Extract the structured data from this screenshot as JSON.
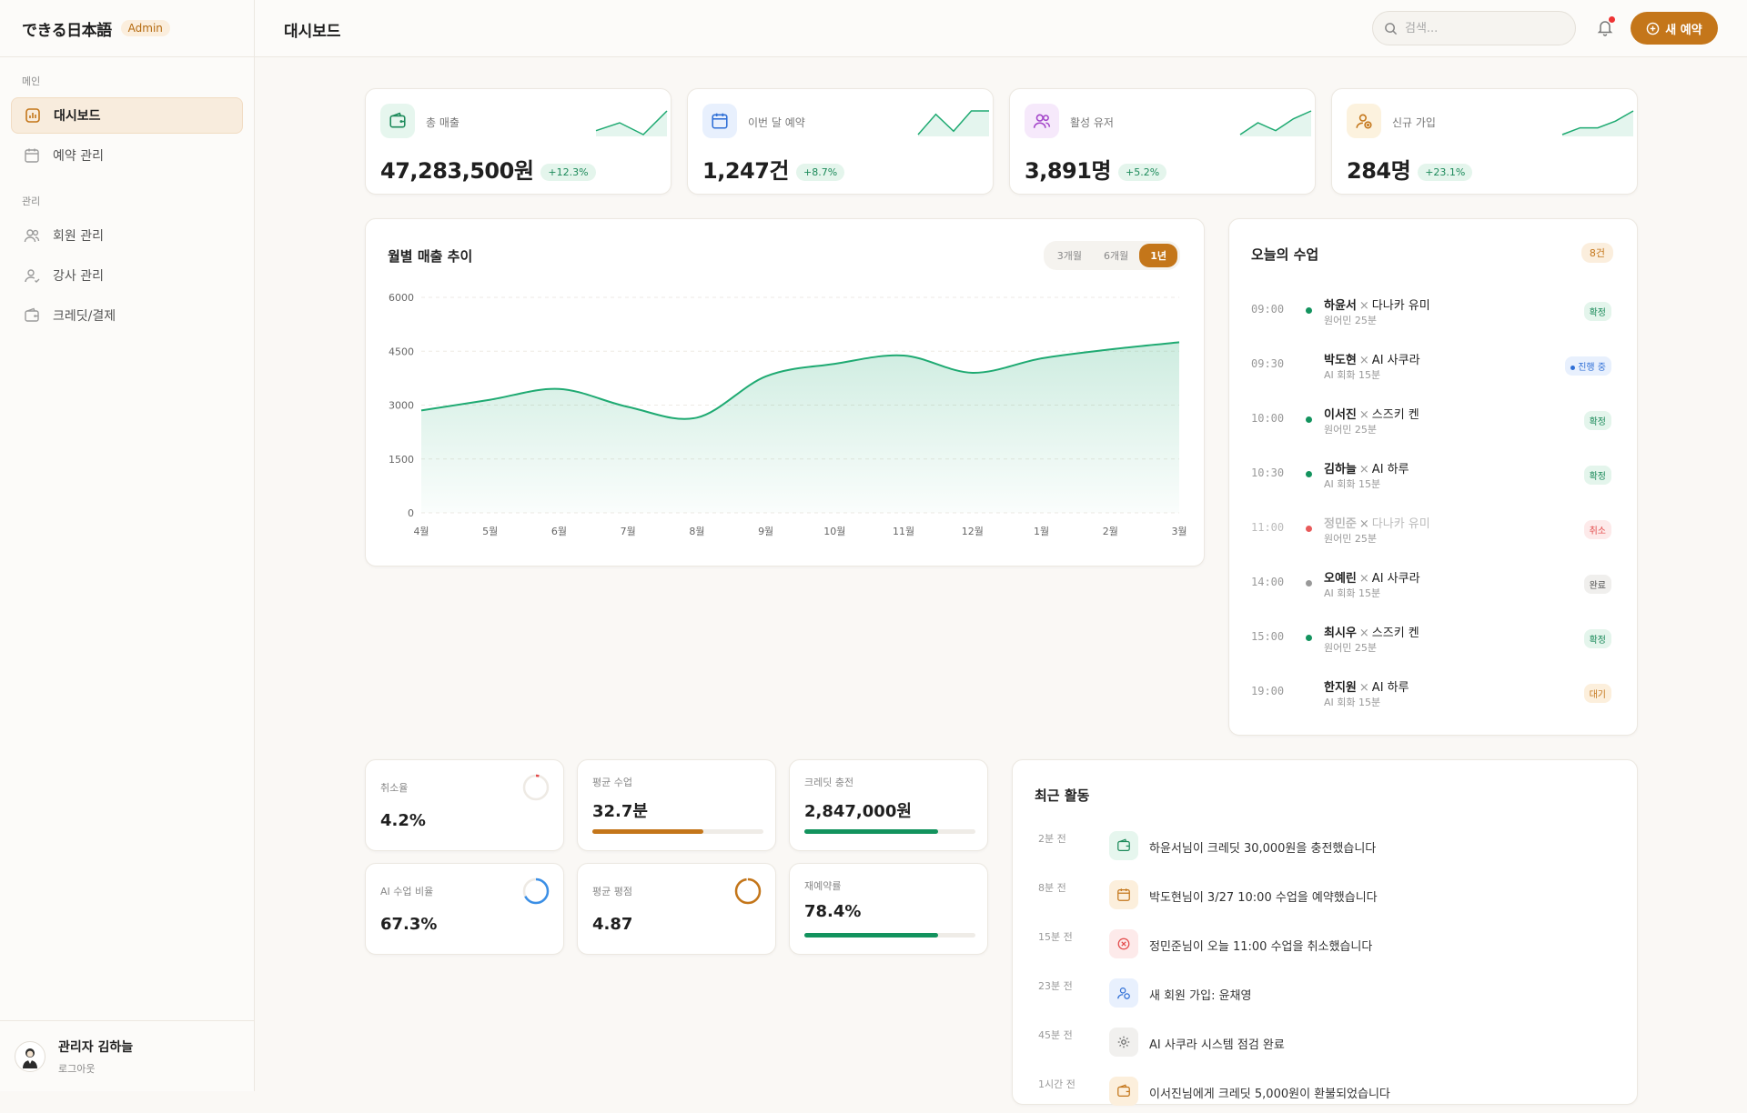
{
  "brand": {
    "name": "できる日本語",
    "badge": "Admin"
  },
  "sidebar": {
    "section_main": "메인",
    "section_manage": "관리",
    "items": [
      {
        "label": "대시보드",
        "icon": "chart-icon",
        "active": true
      },
      {
        "label": "예약 관리",
        "icon": "calendar-icon",
        "active": false
      },
      {
        "label": "회원 관리",
        "icon": "users-icon",
        "active": false
      },
      {
        "label": "강사 관리",
        "icon": "teacher-icon",
        "active": false
      },
      {
        "label": "크레딧/결제",
        "icon": "wallet-icon",
        "active": false
      }
    ],
    "admin": {
      "name": "관리자 김하늘",
      "logout": "로그아웃"
    }
  },
  "header": {
    "title": "대시보드",
    "search_placeholder": "검색...",
    "new_button": "새 예약"
  },
  "stats": [
    {
      "label": "총 매출",
      "value": "47,283,500원",
      "delta": "+12.3%",
      "icon": "wallet-icon",
      "spark": [
        3,
        5,
        2,
        8
      ],
      "color": "#1faa72"
    },
    {
      "label": "이번 달 예약",
      "value": "1,247건",
      "delta": "+8.7%",
      "icon": "calendar-icon",
      "spark": [
        1,
        7,
        2,
        8,
        8
      ],
      "color": "#1faa72"
    },
    {
      "label": "활성 유저",
      "value": "3,891명",
      "delta": "+5.2%",
      "icon": "users-icon",
      "spark": [
        2,
        5,
        3,
        6,
        8
      ],
      "color": "#1faa72"
    },
    {
      "label": "신규 가입",
      "value": "284명",
      "delta": "+23.1%",
      "icon": "user-plus-icon",
      "spark": [
        1,
        3,
        3,
        5,
        8
      ],
      "color": "#1faa72"
    }
  ],
  "revenue": {
    "title": "월별 매출 추이",
    "tabs": [
      "3개월",
      "6개월",
      "1년"
    ],
    "active_tab": "1년"
  },
  "chart_data": {
    "type": "area",
    "title": "월별 매출 추이",
    "categories": [
      "4월",
      "5월",
      "6월",
      "7월",
      "8월",
      "9월",
      "10월",
      "11월",
      "12월",
      "1월",
      "2월",
      "3월"
    ],
    "values": [
      2850,
      3150,
      3450,
      2950,
      2650,
      3800,
      4150,
      4380,
      3900,
      4300,
      4550,
      4750
    ],
    "yticks": [
      0,
      1500,
      3000,
      4500,
      6000
    ],
    "ylim": [
      0,
      6000
    ],
    "xlabel": "",
    "ylabel": "",
    "grid": true,
    "color": "#1faa72"
  },
  "today": {
    "title": "오늘의 수업",
    "count": "8건",
    "lessons": [
      {
        "time": "09:00",
        "student": "하윤서",
        "teacher": "다나카 유미",
        "sub": "원어민 25분",
        "status": "확정",
        "kind": "confirmed"
      },
      {
        "time": "09:30",
        "student": "박도현",
        "teacher": "AI 사쿠라",
        "sub": "AI 회화 15분",
        "status": "진행 중",
        "kind": "progress"
      },
      {
        "time": "10:00",
        "student": "이서진",
        "teacher": "스즈키 켄",
        "sub": "원어민 25분",
        "status": "확정",
        "kind": "confirmed"
      },
      {
        "time": "10:30",
        "student": "김하늘",
        "teacher": "AI 하루",
        "sub": "AI 회화 15분",
        "status": "확정",
        "kind": "confirmed"
      },
      {
        "time": "11:00",
        "student": "정민준",
        "teacher": "다나카 유미",
        "sub": "원어민 25분",
        "status": "취소",
        "kind": "cancel"
      },
      {
        "time": "14:00",
        "student": "오예린",
        "teacher": "AI 사쿠라",
        "sub": "AI 회화 15분",
        "status": "완료",
        "kind": "done"
      },
      {
        "time": "15:00",
        "student": "최시우",
        "teacher": "스즈키 켄",
        "sub": "원어민 25분",
        "status": "확정",
        "kind": "confirmed"
      },
      {
        "time": "19:00",
        "student": "한지원",
        "teacher": "AI 하루",
        "sub": "AI 회화 15분",
        "status": "대기",
        "kind": "waiting"
      }
    ]
  },
  "metrics": {
    "cancel_rate": {
      "label": "취소율",
      "value": "4.2%",
      "fraction": 0.042,
      "color": "#e34b4b"
    },
    "avg_lesson": {
      "label": "평균 수업",
      "value": "32.7분",
      "fraction": 0.65,
      "color": "#c4761a"
    },
    "credit_charge": {
      "label": "크레딧 충전",
      "value": "2,847,000원",
      "fraction": 0.78,
      "color": "#13935e"
    },
    "ai_ratio": {
      "label": "AI 수업 비율",
      "value": "67.3%",
      "fraction": 0.673,
      "color": "#3b8fe6"
    },
    "avg_rating": {
      "label": "평균 평점",
      "value": "4.87",
      "fraction": 0.974,
      "color": "#c4761a"
    },
    "rebook_rate": {
      "label": "재예약률",
      "value": "78.4%",
      "fraction": 0.784,
      "color": "#13935e"
    }
  },
  "activity": {
    "title": "최근 활동",
    "items": [
      {
        "time": "2분 전",
        "text": "하윤서님이 크레딧 30,000원을 충전했습니다",
        "icon": "wallet-icon",
        "tone": "green"
      },
      {
        "time": "8분 전",
        "text": "박도현님이 3/27 10:00 수업을 예약했습니다",
        "icon": "calendar-icon",
        "tone": "orange"
      },
      {
        "time": "15분 전",
        "text": "정민준님이 오늘 11:00 수업을 취소했습니다",
        "icon": "x-circle-icon",
        "tone": "red"
      },
      {
        "time": "23분 전",
        "text": "새 회원 가입: 윤채영",
        "icon": "user-plus-icon",
        "tone": "blue"
      },
      {
        "time": "45분 전",
        "text": "AI 사쿠라 시스템 점검 완료",
        "icon": "gear-icon",
        "tone": "gray"
      },
      {
        "time": "1시간 전",
        "text": "이서진님에게 크레딧 5,000원이 환불되었습니다",
        "icon": "wallet-icon",
        "tone": "orange"
      }
    ]
  }
}
